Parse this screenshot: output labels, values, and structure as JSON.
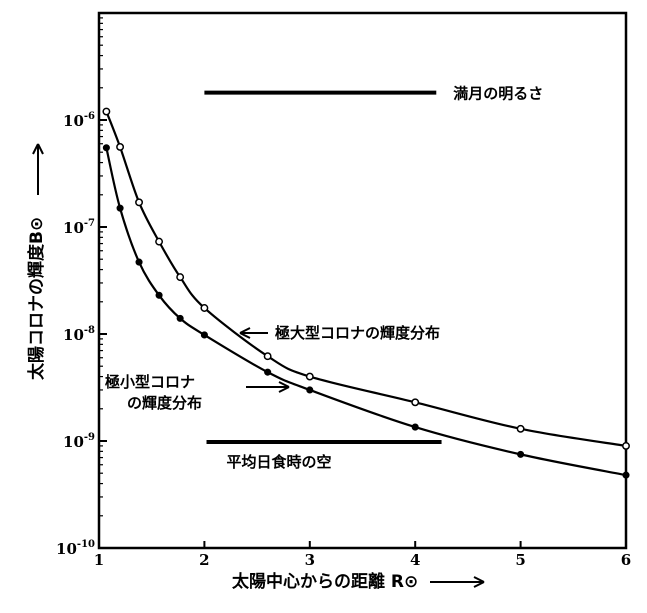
{
  "chart_data": {
    "type": "line",
    "xlabel": "太陽中心からの距離 R⊙",
    "ylabel": "太陽コロナの輝度B⊙",
    "x_scale": "linear",
    "y_scale": "log",
    "xlim": [
      1,
      6
    ],
    "ylim": [
      1e-10,
      1e-05
    ],
    "grid": false,
    "x_ticks": [
      1,
      2,
      3,
      4,
      5,
      6
    ],
    "x_tick_labels": [
      "1",
      "2",
      "3",
      "4",
      "5",
      "6"
    ],
    "y_ticks": [
      1e-10,
      1e-09,
      1e-08,
      1e-07,
      1e-06
    ],
    "y_tick_labels": [
      {
        "base": "10",
        "exp": "-10"
      },
      {
        "base": "10",
        "exp": "-9"
      },
      {
        "base": "10",
        "exp": "-8"
      },
      {
        "base": "10",
        "exp": "-7"
      },
      {
        "base": "10",
        "exp": "-6"
      }
    ],
    "series": [
      {
        "name": "極大型コロナの輝度分布",
        "marker": "open-circle",
        "x": [
          1.07,
          1.2,
          1.38,
          1.57,
          1.77,
          2.0,
          2.6,
          3.0,
          4.0,
          5.0,
          6.0
        ],
        "y": [
          1.2e-06,
          5.6e-07,
          1.7e-07,
          7.3e-08,
          3.4e-08,
          1.75e-08,
          6.2e-09,
          4e-09,
          2.3e-09,
          1.3e-09,
          9e-10
        ]
      },
      {
        "name": "極小型コロナの輝度分布",
        "marker": "filled-circle",
        "x": [
          1.07,
          1.2,
          1.38,
          1.57,
          1.77,
          2.0,
          2.6,
          3.0,
          4.0,
          5.0,
          6.0
        ],
        "y": [
          5.5e-07,
          1.5e-07,
          4.7e-08,
          2.3e-08,
          1.4e-08,
          9.8e-09,
          4.4e-09,
          3e-09,
          1.35e-09,
          7.5e-10,
          4.8e-10
        ]
      }
    ],
    "reference_lines": [
      {
        "label": "満月の明るさ",
        "y": 1.8e-06,
        "x_start": 2.0,
        "x_end": 4.2
      },
      {
        "label": "平均日食時の空",
        "y": 9.8e-10,
        "x_start": 2.02,
        "x_end": 4.25
      }
    ],
    "annotations": [
      {
        "lines": [
          "極大型コロナの輝度分布"
        ],
        "points_to_series": 0
      },
      {
        "lines": [
          "極小型コロナ",
          "の輝度分布"
        ],
        "points_to_series": 1
      }
    ]
  }
}
